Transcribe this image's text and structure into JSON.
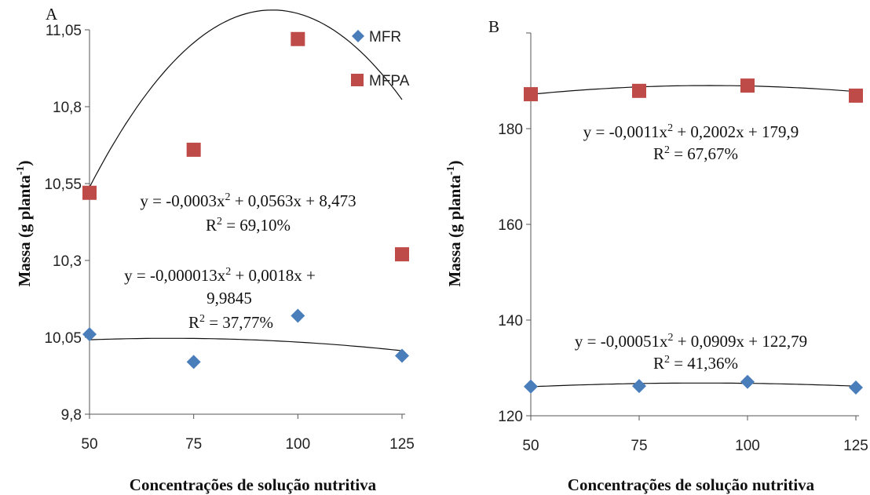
{
  "chart_data": [
    {
      "type": "scatter",
      "panel_label": "A",
      "xlabel": "Concentrações de solução nutritiva",
      "ylabel": "Massa (g planta",
      "ylabel_sup": "-1",
      "ylabel_close": ")",
      "x": [
        50,
        75,
        100,
        125
      ],
      "x_tick_labels": [
        "50",
        "75",
        "100",
        "125"
      ],
      "y_tick_labels": [
        "9,8",
        "10,05",
        "10,3",
        "10,55",
        "10,8",
        "11,05"
      ],
      "ylim": [
        9.8,
        11.05
      ],
      "legend_position": "top-right",
      "series": [
        {
          "name": "MFR",
          "marker": "diamond",
          "color": "#4a7ebb",
          "values": [
            10.06,
            9.97,
            10.12,
            9.99
          ],
          "trend": {
            "a": -1.3e-05,
            "b": 0.0018,
            "c": 9.9845
          },
          "equation_line1": "y = -0,000013x",
          "equation_line1_rest": " + 0,0018x +",
          "equation_line2": "9,9845",
          "r2_label": "R",
          "r2_value": " = 37,77%"
        },
        {
          "name": "MFPA",
          "marker": "square",
          "color": "#be4b48",
          "values": [
            10.52,
            10.66,
            11.02,
            10.32
          ],
          "trend": {
            "a": -0.0003,
            "b": 0.0563,
            "c": 8.473
          },
          "equation_line1": "y = -0,0003x",
          "equation_line1_rest": " + 0,0563x + 8,473",
          "r2_label": "R",
          "r2_value": " = 69,10%"
        }
      ]
    },
    {
      "type": "scatter",
      "panel_label": "B",
      "xlabel": "Concentrações de solução nutritiva",
      "ylabel": "Massa (g planta",
      "ylabel_sup": "-1",
      "ylabel_close": ")",
      "x": [
        50,
        75,
        100,
        125
      ],
      "x_tick_labels": [
        "50",
        "75",
        "100",
        "125"
      ],
      "y_tick_labels": [
        "120",
        "140",
        "160",
        "180"
      ],
      "ylim": [
        120,
        200
      ],
      "series": [
        {
          "marker": "square",
          "color": "#be4b48",
          "values": [
            187.2,
            187.9,
            189.0,
            186.9
          ],
          "trend": {
            "a": -0.0011,
            "b": 0.2002,
            "c": 179.9
          },
          "equation_line1": "y = -0,0011x",
          "equation_line1_rest": " + 0,2002x + 179,9",
          "r2_label": "R",
          "r2_value": " = 67,67%"
        },
        {
          "marker": "diamond",
          "color": "#4a7ebb",
          "values": [
            126.1,
            126.2,
            127.1,
            125.9
          ],
          "trend": {
            "a": -0.00051,
            "b": 0.0909,
            "c": 122.79
          },
          "equation_line1": "y = -0,00051x",
          "equation_line1_rest": " + 0,0909x + 122,79",
          "r2_label": "R",
          "r2_value": " = 41,36%"
        }
      ]
    }
  ]
}
